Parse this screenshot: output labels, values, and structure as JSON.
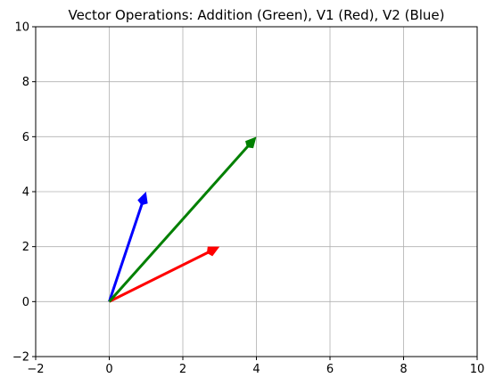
{
  "chart_data": {
    "type": "quiver",
    "title": "Vector Operations: Addition (Green), V1 (Red), V2 (Blue)",
    "xlabel": "",
    "ylabel": "",
    "xlim": [
      -2,
      10
    ],
    "ylim": [
      -2,
      10
    ],
    "xticks": [
      -2,
      0,
      2,
      4,
      6,
      8,
      10
    ],
    "yticks": [
      -2,
      0,
      2,
      4,
      6,
      8,
      10
    ],
    "grid": true,
    "series": [
      {
        "origin": [
          0,
          0
        ],
        "vector": [
          3,
          2
        ],
        "color": "#ff0000"
      },
      {
        "origin": [
          0,
          0
        ],
        "vector": [
          1,
          4
        ],
        "color": "#0000ff"
      },
      {
        "origin": [
          0,
          0
        ],
        "vector": [
          4,
          6
        ],
        "color": "#008000"
      }
    ]
  }
}
